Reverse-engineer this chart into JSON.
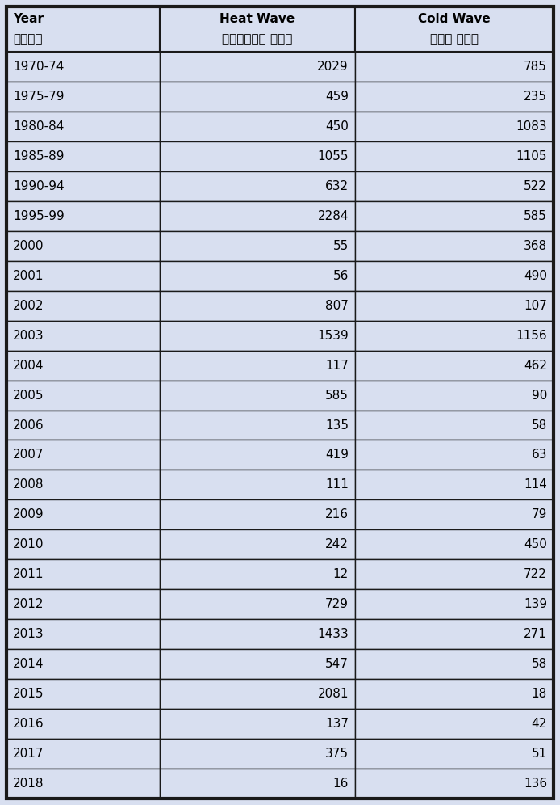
{
  "col1_header_line1": "Year",
  "col1_header_line2": "वर्ष",
  "col2_header_line1": "Heat Wave",
  "col2_header_line2": "ऊष्णता लहर",
  "col3_header_line1": "Cold Wave",
  "col3_header_line2": "शीत लहर",
  "rows": [
    [
      "1970-74",
      2029,
      785
    ],
    [
      "1975-79",
      459,
      235
    ],
    [
      "1980-84",
      450,
      1083
    ],
    [
      "1985-89",
      1055,
      1105
    ],
    [
      "1990-94",
      632,
      522
    ],
    [
      "1995-99",
      2284,
      585
    ],
    [
      "2000",
      55,
      368
    ],
    [
      "2001",
      56,
      490
    ],
    [
      "2002",
      807,
      107
    ],
    [
      "2003",
      1539,
      1156
    ],
    [
      "2004",
      117,
      462
    ],
    [
      "2005",
      585,
      90
    ],
    [
      "2006",
      135,
      58
    ],
    [
      "2007",
      419,
      63
    ],
    [
      "2008",
      111,
      114
    ],
    [
      "2009",
      216,
      79
    ],
    [
      "2010",
      242,
      450
    ],
    [
      "2011",
      12,
      722
    ],
    [
      "2012",
      729,
      139
    ],
    [
      "2013",
      1433,
      271
    ],
    [
      "2014",
      547,
      58
    ],
    [
      "2015",
      2081,
      18
    ],
    [
      "2016",
      137,
      42
    ],
    [
      "2017",
      375,
      51
    ],
    [
      "2018",
      16,
      136
    ]
  ],
  "bg_color": "#d8dff0",
  "border_color": "#1a1a1a",
  "header_font_size": 11,
  "cell_font_size": 11
}
